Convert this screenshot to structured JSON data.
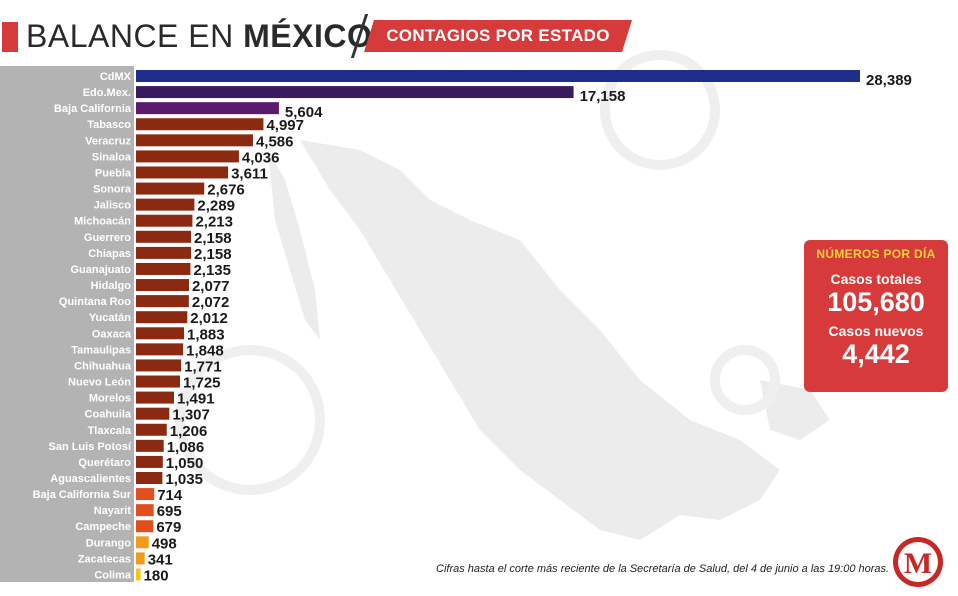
{
  "header": {
    "title_prefix": "BALANCE EN",
    "title_bold": "MÉXICO",
    "tag": "CONTAGIOS POR ESTADO"
  },
  "panel": {
    "title": "NÚMEROS POR DÍA",
    "total_label": "Casos totales",
    "total_value": "105,680",
    "new_label": "Casos nuevos",
    "new_value": "4,442"
  },
  "footnote": "Cifras hasta el corte más reciente de la Secretaría de Salud, del 4 de junio a las 19:00 horas.",
  "logo": {
    "letter": "M",
    "icon": "milenio-logo-icon"
  },
  "colors": {
    "accent": "#d63a3a",
    "panel_title": "#f7d23a",
    "label_column": "#b3b3b3"
  },
  "chart_data": {
    "type": "bar",
    "orientation": "horizontal",
    "title": "CONTAGIOS POR ESTADO",
    "categories": [
      "CdMX",
      "Edo.Mex.",
      "Baja California",
      "Tabasco",
      "Veracruz",
      "Sinaloa",
      "Puebla",
      "Sonora",
      "Jalisco",
      "Michoacán",
      "Guerrero",
      "Chiapas",
      "Guanajuato",
      "Hidalgo",
      "Quintana Roo",
      "Yucatán",
      "Oaxaca",
      "Tamaulipas",
      "Chihuahua",
      "Nuevo León",
      "Morelos",
      "Coahuila",
      "Tlaxcala",
      "San Luis Potosí",
      "Querétaro",
      "Aguascalientes",
      "Baja California Sur",
      "Nayarit",
      "Campeche",
      "Durango",
      "Zacatecas",
      "Colima"
    ],
    "values": [
      28389,
      17158,
      5604,
      4997,
      4586,
      4036,
      3611,
      2676,
      2289,
      2213,
      2158,
      2158,
      2135,
      2077,
      2072,
      2012,
      1883,
      1848,
      1771,
      1725,
      1491,
      1307,
      1206,
      1086,
      1050,
      1035,
      714,
      695,
      679,
      498,
      341,
      180
    ],
    "value_labels": [
      "28,389",
      "17,158",
      "5,604",
      "4,997",
      "4,586",
      "4,036",
      "3,611",
      "2,676",
      "2,289",
      "2,213",
      "2,158",
      "2,158",
      "2,135",
      "2,077",
      "2,072",
      "2,012",
      "1,883",
      "1,848",
      "1,771",
      "1,725",
      "1,491",
      "1,307",
      "1,206",
      "1,086",
      "1,050",
      "1,035",
      "714",
      "695",
      "679",
      "498",
      "341",
      "180"
    ],
    "bar_colors": [
      "#1f2d8a",
      "#3a1a5e",
      "#5a1a6e",
      "#8b2a10",
      "#8b2a10",
      "#8b2a10",
      "#8b2a10",
      "#8b2a10",
      "#8b2a10",
      "#8b2a10",
      "#8b2a10",
      "#8b2a10",
      "#8b2a10",
      "#8b2a10",
      "#8b2a10",
      "#8b2a10",
      "#8b2a10",
      "#8b2a10",
      "#8b2a10",
      "#8b2a10",
      "#8b2a10",
      "#8b2a10",
      "#8b2a10",
      "#8b2a10",
      "#8b2a10",
      "#8b2a10",
      "#e0501e",
      "#e0501e",
      "#e0501e",
      "#f29a1c",
      "#f29a1c",
      "#f5c518"
    ],
    "xlim": [
      0,
      28389
    ]
  }
}
